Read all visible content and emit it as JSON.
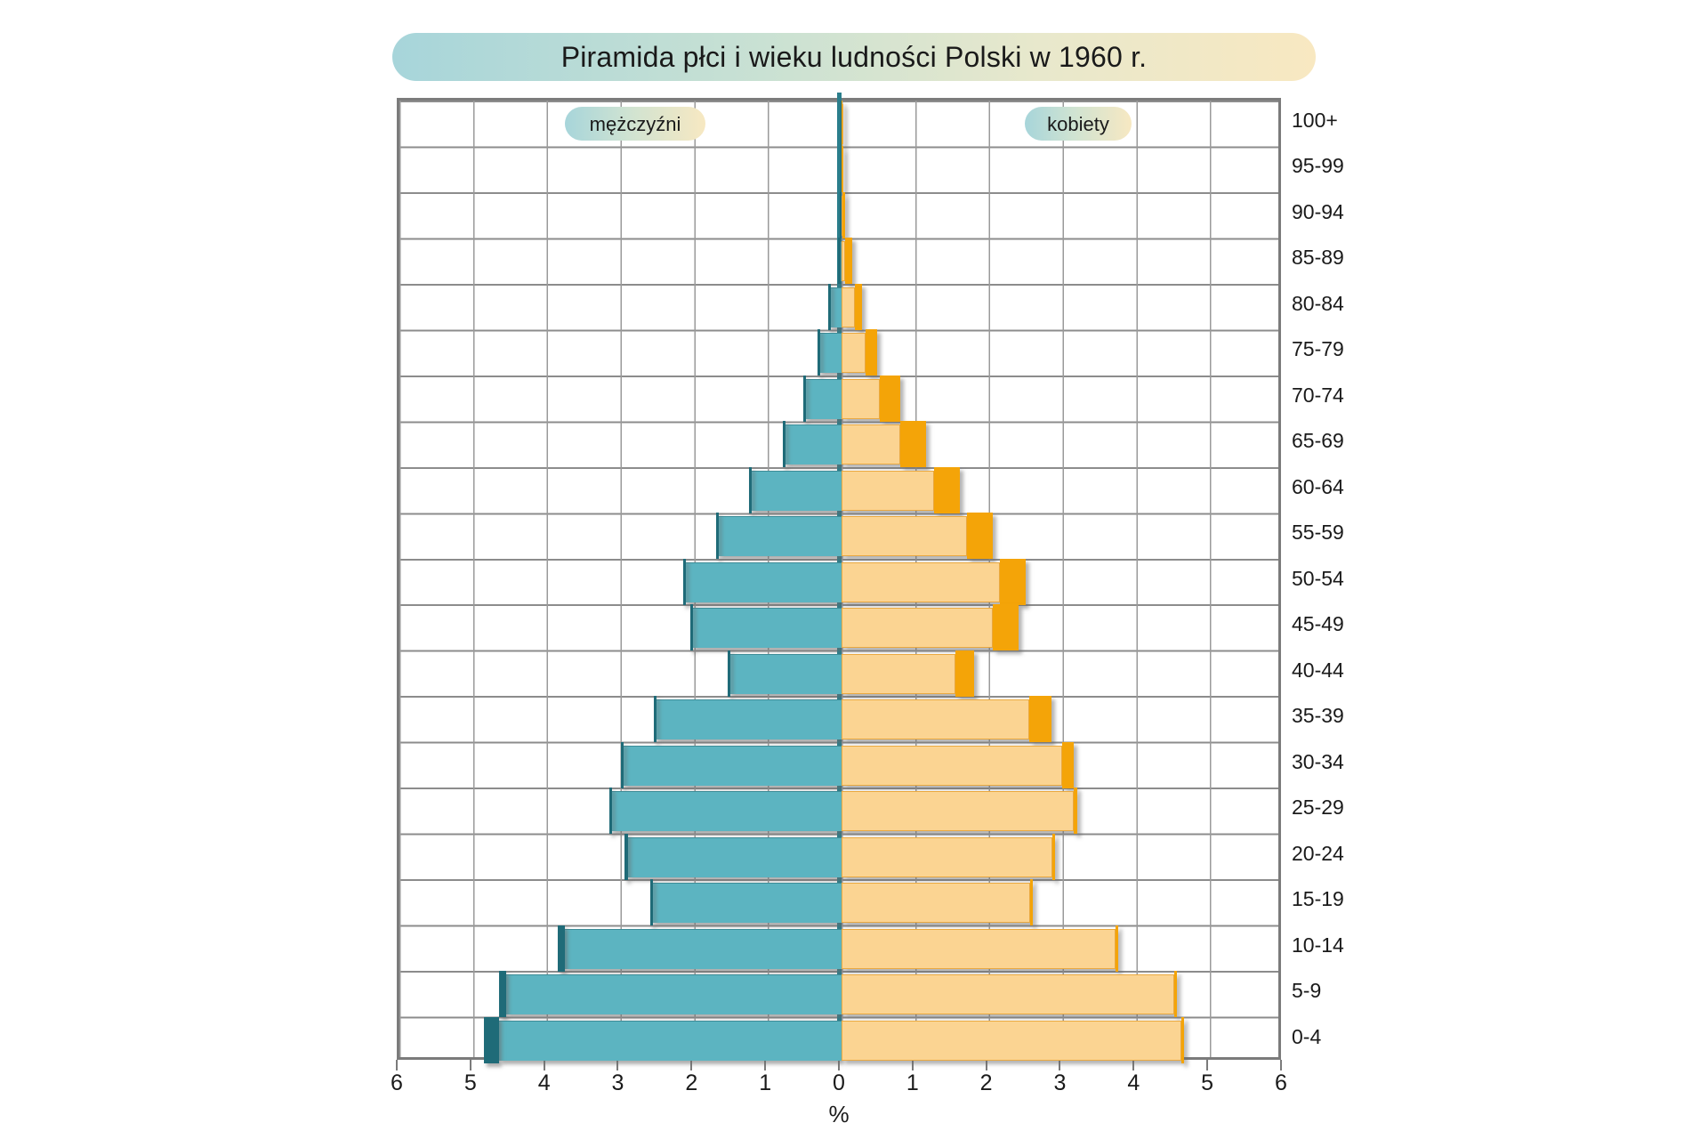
{
  "chart_data": {
    "type": "bar",
    "variant": "population_pyramid",
    "title": "Piramida płci i wieku ludności Polski w 1960 r.",
    "legend": [
      "mężczyźni",
      "kobiety"
    ],
    "xlabel": "%",
    "x_tick_labels": [
      "6",
      "5",
      "4",
      "3",
      "2",
      "1",
      "0",
      "1",
      "2",
      "3",
      "4",
      "5",
      "6"
    ],
    "xlim_each_side": 6,
    "grid": true,
    "age_groups_top_to_bottom": [
      "100+",
      "95-99",
      "90-94",
      "85-89",
      "80-84",
      "75-79",
      "70-74",
      "65-69",
      "60-64",
      "55-59",
      "50-54",
      "45-49",
      "40-44",
      "35-39",
      "30-34",
      "25-29",
      "20-24",
      "15-19",
      "10-14",
      "5-9",
      "0-4"
    ],
    "series": [
      {
        "name": "mężczyźni",
        "side": "left",
        "values_pct_top_to_bottom": [
          0.01,
          0.01,
          0.02,
          0.05,
          0.18,
          0.33,
          0.52,
          0.8,
          1.25,
          1.7,
          2.15,
          2.05,
          1.55,
          2.55,
          3.0,
          3.15,
          2.95,
          2.6,
          3.85,
          4.65,
          4.85
        ]
      },
      {
        "name": "kobiety",
        "side": "right",
        "values_pct_top_to_bottom": [
          0.01,
          0.02,
          0.05,
          0.14,
          0.28,
          0.48,
          0.8,
          1.15,
          1.6,
          2.05,
          2.5,
          2.4,
          1.8,
          2.85,
          3.15,
          3.2,
          2.9,
          2.6,
          3.75,
          4.55,
          4.65
        ]
      }
    ],
    "colors": {
      "men_body": "#5cb4c1",
      "men_cap": "#1f6b78",
      "women_body": "#fbd492",
      "women_cap": "#f4a408",
      "center_line": "#2b7e8c",
      "grid_line": "#8c8c8c",
      "pill_gradient_start": "#a7d5da",
      "pill_gradient_end": "#f8e8c1"
    },
    "notes": "dark end caps depict the sex surplus in each age group"
  }
}
